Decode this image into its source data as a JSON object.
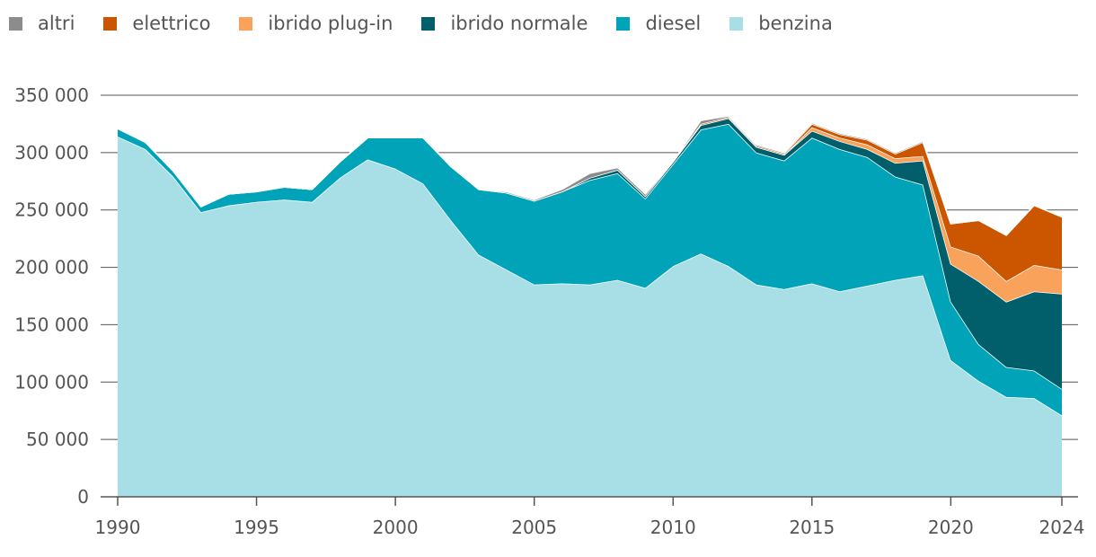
{
  "chart_data": {
    "type": "area",
    "stacked": true,
    "title": "",
    "xlabel": "",
    "ylabel": "",
    "x": [
      1990,
      1991,
      1992,
      1993,
      1994,
      1995,
      1996,
      1997,
      1998,
      1999,
      2000,
      2001,
      2002,
      2003,
      2004,
      2005,
      2006,
      2007,
      2008,
      2009,
      2010,
      2011,
      2012,
      2013,
      2014,
      2015,
      2016,
      2017,
      2018,
      2019,
      2020,
      2021,
      2022,
      2023,
      2024
    ],
    "ylim": [
      0,
      350000
    ],
    "yticks": [
      0,
      50000,
      100000,
      150000,
      200000,
      250000,
      300000,
      350000
    ],
    "ytick_labels": [
      "0",
      "50 000",
      "100 000",
      "150 000",
      "200 000",
      "250 000",
      "300 000",
      "350 000"
    ],
    "xticks": [
      1990,
      1995,
      2000,
      2005,
      2010,
      2015,
      2020,
      2024
    ],
    "xtick_labels": [
      "1990",
      "1995",
      "2000",
      "2005",
      "2010",
      "2015",
      "2020",
      "2024"
    ],
    "grid": "horizontal",
    "legend_position": "top-left",
    "legend": [
      "altri",
      "elettrico",
      "ibrido plug-in",
      "ibrido normale",
      "diesel",
      "benzina"
    ],
    "series": [
      {
        "name": "benzina",
        "color": "#a8dfe6",
        "values": [
          314000,
          303000,
          279000,
          248000,
          254000,
          257000,
          259000,
          257000,
          278000,
          294000,
          286000,
          273000,
          241000,
          211000,
          198000,
          185000,
          186000,
          185000,
          189000,
          182000,
          201000,
          212000,
          201000,
          185000,
          181000,
          186000,
          179000,
          184000,
          189000,
          193000,
          119000,
          101000,
          87000,
          86000,
          71000
        ]
      },
      {
        "name": "diesel",
        "color": "#00a3b7",
        "values": [
          7000,
          6000,
          5000,
          5000,
          10000,
          9000,
          11000,
          11000,
          14000,
          19000,
          27000,
          40000,
          47000,
          57000,
          67000,
          73000,
          80000,
          91000,
          93000,
          78000,
          89000,
          108000,
          124000,
          115000,
          112000,
          127000,
          124000,
          112000,
          90000,
          79000,
          51000,
          32000,
          26000,
          24000,
          23000
        ]
      },
      {
        "name": "ibrido normale",
        "color": "#005f6b",
        "values": [
          0,
          0,
          0,
          0,
          0,
          0,
          0,
          0,
          0,
          0,
          0,
          0,
          0,
          0,
          0,
          0,
          0,
          2000,
          3000,
          2000,
          2000,
          4000,
          5000,
          5000,
          5000,
          6000,
          7000,
          7000,
          12000,
          21000,
          33000,
          55000,
          57000,
          69000,
          83000
        ]
      },
      {
        "name": "ibrido plug-in",
        "color": "#f9a25c",
        "values": [
          0,
          0,
          0,
          0,
          0,
          0,
          0,
          0,
          0,
          0,
          0,
          0,
          0,
          0,
          0,
          0,
          0,
          0,
          0,
          0,
          0,
          0,
          0,
          0,
          0,
          3000,
          3000,
          4000,
          4000,
          4000,
          15000,
          22000,
          18000,
          23000,
          21000
        ]
      },
      {
        "name": "elettrico",
        "color": "#cc5500",
        "values": [
          0,
          0,
          0,
          0,
          0,
          0,
          0,
          0,
          0,
          0,
          0,
          0,
          0,
          0,
          0,
          0,
          0,
          0,
          0,
          0,
          0,
          1000,
          1000,
          1000,
          1000,
          3000,
          3000,
          4000,
          4000,
          12000,
          20000,
          31000,
          40000,
          52000,
          46000
        ]
      },
      {
        "name": "altri",
        "color": "#8c8c8c",
        "values": [
          0,
          0,
          0,
          0,
          0,
          0,
          0,
          0,
          0,
          0,
          0,
          0,
          0,
          0,
          1000,
          1000,
          2000,
          4000,
          2000,
          2000,
          0,
          3000,
          1000,
          1000,
          1000,
          1000,
          1000,
          1000,
          1000,
          1000,
          0,
          0,
          0,
          0,
          0
        ]
      }
    ]
  }
}
